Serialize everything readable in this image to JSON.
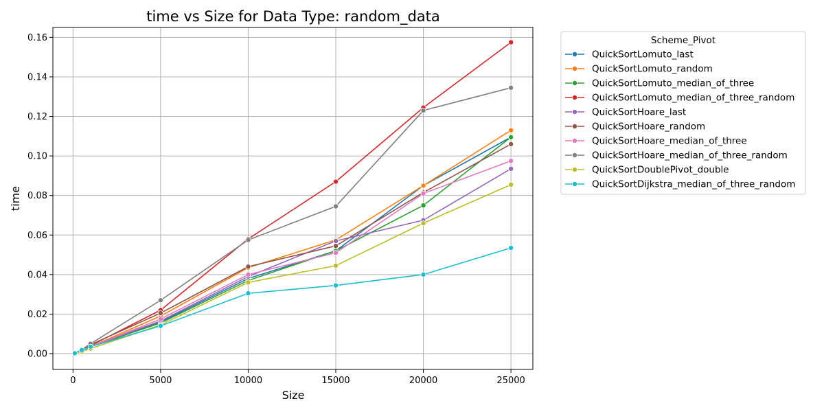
{
  "chart_data": {
    "type": "line",
    "title": "time vs Size for Data Type: random_data",
    "xlabel": "Size",
    "ylabel": "time",
    "xlim": [
      -1150,
      26250
    ],
    "ylim": [
      -0.008,
      0.165
    ],
    "xticks": [
      0,
      5000,
      10000,
      15000,
      20000,
      25000
    ],
    "xtick_labels": [
      "0",
      "5000",
      "10000",
      "15000",
      "20000",
      "25000"
    ],
    "yticks": [
      0.0,
      0.02,
      0.04,
      0.06,
      0.08,
      0.1,
      0.12,
      0.14,
      0.16
    ],
    "ytick_labels": [
      "0.00",
      "0.02",
      "0.04",
      "0.06",
      "0.08",
      "0.10",
      "0.12",
      "0.14",
      "0.16"
    ],
    "grid": true,
    "legend_title": "Scheme_Pivot",
    "legend_position": "outside-right",
    "x": [
      100,
      500,
      1000,
      5000,
      10000,
      15000,
      20000,
      25000
    ],
    "series": [
      {
        "name": "QuickSortLomuto_last",
        "color": "#1f77b4",
        "values": [
          0.0002,
          0.0015,
          0.0035,
          0.016,
          0.038,
          0.052,
          0.085,
          0.1095
        ]
      },
      {
        "name": "QuickSortLomuto_random",
        "color": "#ff7f0e",
        "values": [
          0.0002,
          0.0015,
          0.0035,
          0.019,
          0.0435,
          0.0575,
          0.085,
          0.113
        ]
      },
      {
        "name": "QuickSortLomuto_median_of_three",
        "color": "#2ca02c",
        "values": [
          0.0002,
          0.0015,
          0.0035,
          0.0155,
          0.037,
          0.052,
          0.075,
          0.1095
        ]
      },
      {
        "name": "QuickSortLomuto_median_of_three_random",
        "color": "#d62728",
        "values": [
          0.0002,
          0.0018,
          0.004,
          0.022,
          0.058,
          0.087,
          0.1245,
          0.1575
        ]
      },
      {
        "name": "QuickSortHoare_last",
        "color": "#9467bd",
        "values": [
          0.0002,
          0.0015,
          0.0035,
          0.0165,
          0.039,
          0.057,
          0.0675,
          0.0935
        ]
      },
      {
        "name": "QuickSortHoare_random",
        "color": "#8c564b",
        "values": [
          0.0002,
          0.0018,
          0.0045,
          0.0205,
          0.044,
          0.0545,
          0.0815,
          0.106
        ]
      },
      {
        "name": "QuickSortHoare_median_of_three",
        "color": "#e377c2",
        "values": [
          0.0002,
          0.0015,
          0.0035,
          0.0175,
          0.04,
          0.051,
          0.081,
          0.0975
        ]
      },
      {
        "name": "QuickSortHoare_median_of_three_random",
        "color": "#7f7f7f",
        "values": [
          0.0002,
          0.002,
          0.005,
          0.027,
          0.0575,
          0.0745,
          0.123,
          0.1345
        ]
      },
      {
        "name": "QuickSortDoublePivot_double",
        "color": "#bcbd22",
        "values": [
          0.0001,
          0.001,
          0.0025,
          0.0145,
          0.036,
          0.0445,
          0.066,
          0.0855
        ]
      },
      {
        "name": "QuickSortDijkstra_median_of_three_random",
        "color": "#17becf",
        "values": [
          0.0002,
          0.0018,
          0.0035,
          0.014,
          0.0305,
          0.0345,
          0.04,
          0.0535
        ]
      }
    ]
  }
}
